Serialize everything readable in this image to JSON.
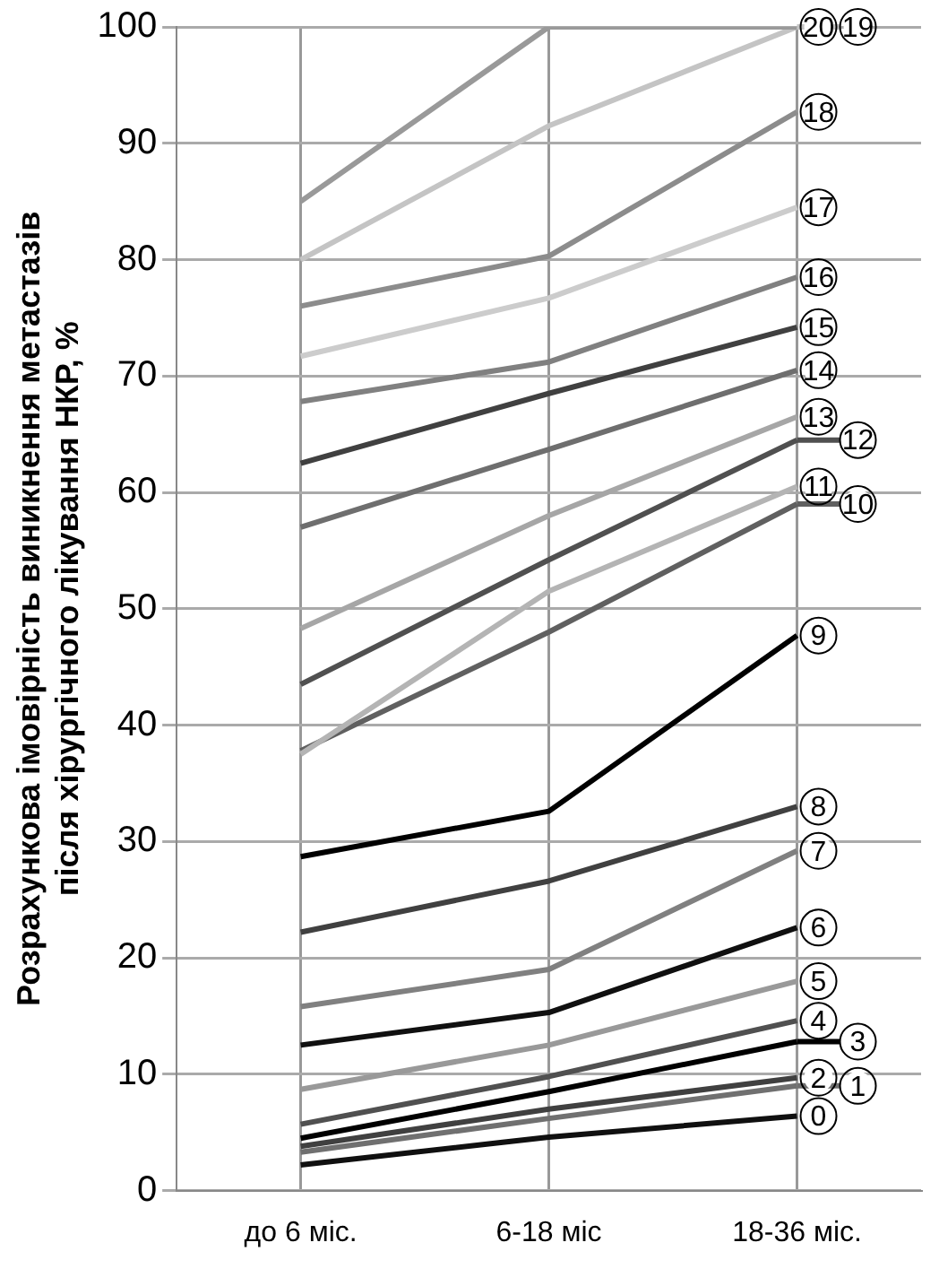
{
  "chart_data": {
    "type": "line",
    "ylabel": "Розрахункова імовірність виникнення метастазів\nпісля хірургічного лікування НКР, %",
    "categories": [
      "до 6 міс.",
      "6-18 міс",
      "18-36 міс."
    ],
    "ylim": [
      0,
      100
    ],
    "yticks": [
      0,
      10,
      20,
      30,
      40,
      50,
      60,
      70,
      80,
      90,
      100
    ],
    "grid": true,
    "legend": "right",
    "marker": "none",
    "line_style": "solid",
    "series": [
      {
        "name": "20",
        "color": "#999999",
        "values": [
          85,
          100,
          100
        ]
      },
      {
        "name": "19",
        "color": "#c4c4c4",
        "values": [
          80,
          91.5,
          100
        ]
      },
      {
        "name": "18",
        "color": "#8c8c8c",
        "values": [
          76,
          80.3,
          92.7
        ]
      },
      {
        "name": "17",
        "color": "#cccccc",
        "values": [
          71.7,
          76.7,
          84.5
        ]
      },
      {
        "name": "16",
        "color": "#808080",
        "values": [
          67.8,
          71.2,
          78.5
        ]
      },
      {
        "name": "15",
        "color": "#404040",
        "values": [
          62.5,
          68.5,
          74.2
        ]
      },
      {
        "name": "14",
        "color": "#6e6e6e",
        "values": [
          57,
          63.7,
          70.5
        ]
      },
      {
        "name": "13",
        "color": "#a6a6a6",
        "values": [
          48.3,
          58,
          66.5
        ]
      },
      {
        "name": "12",
        "color": "#505050",
        "values": [
          43.5,
          54.2,
          64.5
        ]
      },
      {
        "name": "11",
        "color": "#b4b4b4",
        "values": [
          37.5,
          51.5,
          60.5
        ]
      },
      {
        "name": "10",
        "color": "#606060",
        "values": [
          37.8,
          48,
          59
        ]
      },
      {
        "name": "9",
        "color": "#000000",
        "values": [
          28.7,
          32.6,
          47.7
        ]
      },
      {
        "name": "8",
        "color": "#404040",
        "values": [
          22.2,
          26.6,
          33
        ]
      },
      {
        "name": "7",
        "color": "#808080",
        "values": [
          15.8,
          19,
          29.2
        ]
      },
      {
        "name": "6",
        "color": "#101010",
        "values": [
          12.5,
          15.3,
          22.6
        ]
      },
      {
        "name": "5",
        "color": "#999999",
        "values": [
          8.7,
          12.5,
          18
        ]
      },
      {
        "name": "4",
        "color": "#505050",
        "values": [
          5.7,
          9.8,
          14.6
        ]
      },
      {
        "name": "3",
        "color": "#000000",
        "values": [
          4.5,
          8.5,
          12.8
        ]
      },
      {
        "name": "2",
        "color": "#404040",
        "values": [
          3.8,
          7,
          9.7
        ]
      },
      {
        "name": "1",
        "color": "#707070",
        "values": [
          3.3,
          6.2,
          9
        ]
      },
      {
        "name": "0",
        "color": "#101010",
        "values": [
          2.2,
          4.6,
          6.4
        ]
      }
    ]
  }
}
